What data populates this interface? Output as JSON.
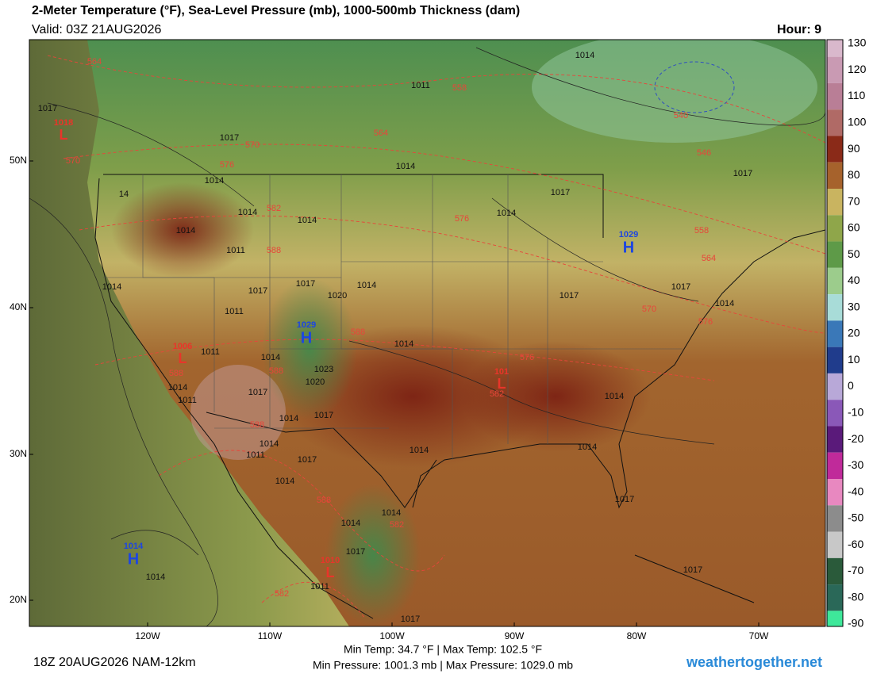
{
  "header": {
    "title": "2-Meter Temperature (°F), Sea-Level Pressure (mb), 1000-500mb Thickness (dam)",
    "valid": "Valid: 03Z 21AUG2026",
    "hour": "Hour: 9"
  },
  "colorbar": {
    "ticks": [
      130,
      120,
      110,
      100,
      90,
      80,
      70,
      60,
      50,
      40,
      30,
      20,
      10,
      0,
      -10,
      -20,
      -30,
      -40,
      -50,
      -60,
      -70,
      -80,
      -90
    ],
    "colors": [
      "#d9b8cc",
      "#c99ab3",
      "#b97e96",
      "#b06a66",
      "#8a2a18",
      "#a6622c",
      "#c9b460",
      "#8fa64a",
      "#5e9a48",
      "#9ccc8c",
      "#a8dcd8",
      "#3a78b8",
      "#203c8c",
      "#b8a8d8",
      "#8a58b8",
      "#5a1a7a",
      "#c02a9a",
      "#e888c0",
      "#8c8c8c",
      "#c8c8c8",
      "#2a5a3a",
      "#2a6858",
      "#3ee89a"
    ]
  },
  "axes": {
    "lat_labels": [
      "50N",
      "40N",
      "30N",
      "20N"
    ],
    "lon_labels": [
      "120W",
      "110W",
      "100W",
      "90W",
      "80W",
      "70W"
    ]
  },
  "map": {
    "isobar_labels": [
      "1014",
      "1011",
      "1017",
      "1017",
      "1014",
      "1017",
      "1014",
      "1014",
      "1014",
      "1014",
      "1011",
      "1014",
      "1017",
      "1017",
      "1014",
      "1020",
      "1017",
      "1014",
      "1011",
      "1017",
      "1017",
      "1014",
      "1014",
      "1011",
      "1014",
      "1023",
      "1020",
      "1014",
      "1011",
      "1017",
      "1014",
      "1017",
      "1014",
      "1014",
      "1011",
      "1014",
      "1014",
      "1017",
      "1014",
      "1017",
      "1014",
      "1014",
      "1017",
      "1014",
      "1017",
      "1017",
      "1011",
      "14"
    ],
    "thickness_labels": [
      "564",
      "558",
      "564",
      "570",
      "576",
      "570",
      "582",
      "576",
      "558",
      "564",
      "588",
      "570",
      "576",
      "588",
      "576",
      "588",
      "588",
      "582",
      "588",
      "588",
      "582",
      "582",
      "546",
      "540"
    ],
    "highs": [
      {
        "pressure": "1029",
        "symbol": "H"
      },
      {
        "pressure": "1029",
        "symbol": "H"
      },
      {
        "pressure": "1014",
        "symbol": "H"
      }
    ],
    "lows": [
      {
        "pressure": "1018",
        "symbol": "L"
      },
      {
        "pressure": "1006",
        "symbol": "L"
      },
      {
        "pressure": "101",
        "symbol": "L"
      },
      {
        "pressure": "1010",
        "symbol": "L"
      }
    ]
  },
  "footer": {
    "run": "18Z 20AUG2026 NAM-12km",
    "temps": "Min Temp:  34.7 °F | Max Temp: 102.5 °F",
    "pressures": "Min Pressure: 1001.3 mb | Max Pressure: 1029.0 mb",
    "site": "weathertogether.net"
  }
}
